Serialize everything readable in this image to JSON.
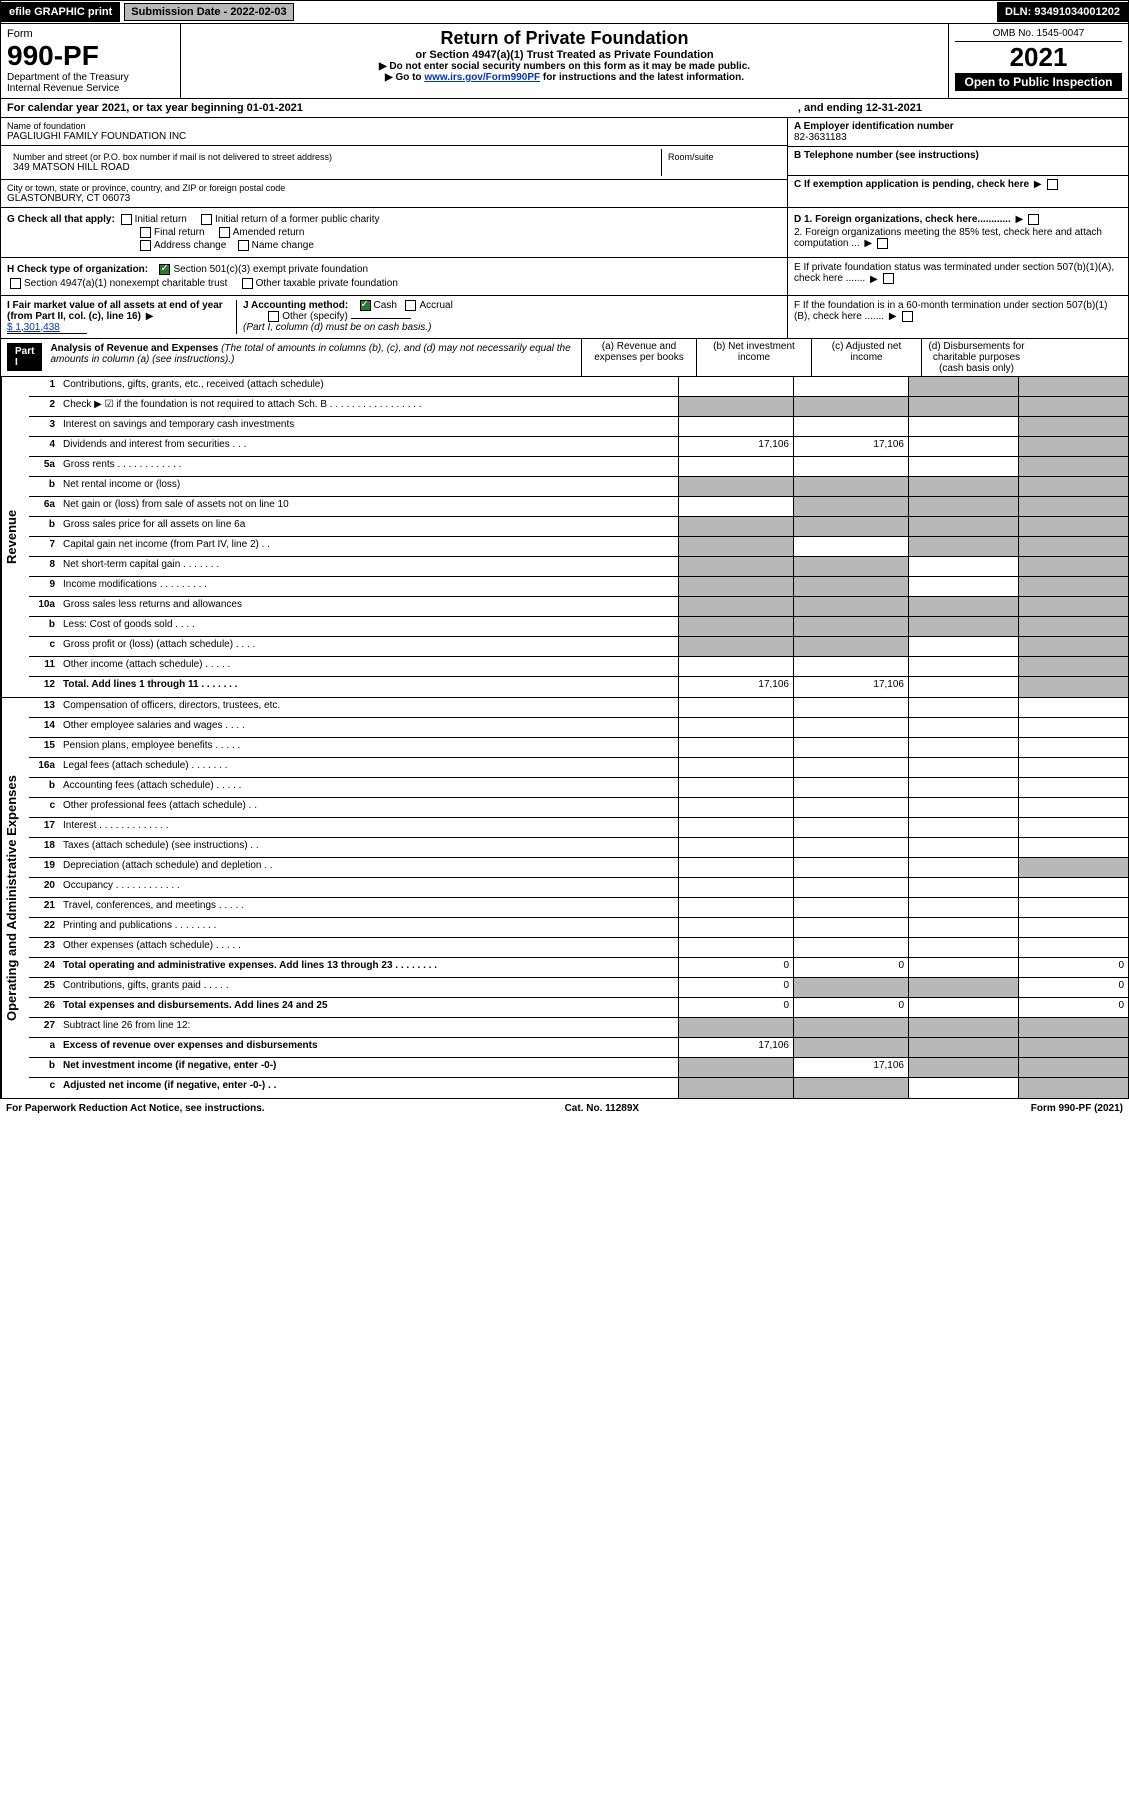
{
  "topbar": {
    "efile": "efile GRAPHIC print",
    "submission_label": "Submission Date - 2022-02-03",
    "dln": "DLN: 93491034001202"
  },
  "header": {
    "form_label": "Form",
    "form_number": "990-PF",
    "dept": "Department of the Treasury",
    "irs": "Internal Revenue Service",
    "title": "Return of Private Foundation",
    "subtitle": "or Section 4947(a)(1) Trust Treated as Private Foundation",
    "inst1": "▶ Do not enter social security numbers on this form as it may be made public.",
    "inst2_pre": "▶ Go to ",
    "inst2_link": "www.irs.gov/Form990PF",
    "inst2_post": " for instructions and the latest information.",
    "omb": "OMB No. 1545-0047",
    "year": "2021",
    "inspect": "Open to Public Inspection"
  },
  "cal": {
    "text": "For calendar year 2021, or tax year beginning 01-01-2021",
    "end": ", and ending 12-31-2021"
  },
  "info": {
    "name_label": "Name of foundation",
    "name": "PAGLIUGHI FAMILY FOUNDATION INC",
    "addr_label": "Number and street (or P.O. box number if mail is not delivered to street address)",
    "addr": "349 MATSON HILL ROAD",
    "room_label": "Room/suite",
    "city_label": "City or town, state or province, country, and ZIP or foreign postal code",
    "city": "GLASTONBURY, CT  06073",
    "ein_label": "A Employer identification number",
    "ein": "82-3631183",
    "tel_label": "B Telephone number (see instructions)",
    "c_label": "C If exemption application is pending, check here"
  },
  "g": {
    "label": "G Check all that apply:",
    "opts": [
      "Initial return",
      "Initial return of a former public charity",
      "Final return",
      "Amended return",
      "Address change",
      "Name change"
    ]
  },
  "h": {
    "label": "H Check type of organization:",
    "opt1": "Section 501(c)(3) exempt private foundation",
    "opt2": "Section 4947(a)(1) nonexempt charitable trust",
    "opt3": "Other taxable private foundation"
  },
  "i": {
    "label": "I Fair market value of all assets at end of year (from Part II, col. (c), line 16)",
    "val": "$  1,301,438"
  },
  "j": {
    "label": "J Accounting method:",
    "cash": "Cash",
    "accrual": "Accrual",
    "other": "Other (specify)",
    "note": "(Part I, column (d) must be on cash basis.)"
  },
  "d": {
    "d1": "D 1. Foreign organizations, check here............",
    "d2": "2. Foreign organizations meeting the 85% test, check here and attach computation ..."
  },
  "e": {
    "text": "E  If private foundation status was terminated under section 507(b)(1)(A), check here ......."
  },
  "f": {
    "text": "F  If the foundation is in a 60-month termination under section 507(b)(1)(B), check here ......."
  },
  "part1": {
    "label": "Part I",
    "title": "Analysis of Revenue and Expenses",
    "note": "(The total of amounts in columns (b), (c), and (d) may not necessarily equal the amounts in column (a) (see instructions).)",
    "col_a": "(a)  Revenue and expenses per books",
    "col_b": "(b)  Net investment income",
    "col_c": "(c)  Adjusted net income",
    "col_d": "(d)  Disbursements for charitable purposes (cash basis only)"
  },
  "revenue_rows": [
    {
      "n": "1",
      "d": "Contributions, gifts, grants, etc., received (attach schedule)",
      "a": "",
      "b": "",
      "c": "g",
      "dcol": "g"
    },
    {
      "n": "2",
      "d": "Check ▶ ☑ if the foundation is not required to attach Sch. B  . . . . . . . . . . . . . . . . .",
      "a": "g",
      "b": "g",
      "c": "g",
      "dcol": "g"
    },
    {
      "n": "3",
      "d": "Interest on savings and temporary cash investments",
      "a": "",
      "b": "",
      "c": "",
      "dcol": "g"
    },
    {
      "n": "4",
      "d": "Dividends and interest from securities   .  .  .",
      "a": "17,106",
      "b": "17,106",
      "c": "",
      "dcol": "g"
    },
    {
      "n": "5a",
      "d": "Gross rents   .  .  .  .  .  .  .  .  .  .  .  .",
      "a": "",
      "b": "",
      "c": "",
      "dcol": "g"
    },
    {
      "n": "b",
      "d": "Net rental income or (loss)  ",
      "a": "g",
      "b": "g",
      "c": "g",
      "dcol": "g"
    },
    {
      "n": "6a",
      "d": "Net gain or (loss) from sale of assets not on line 10",
      "a": "",
      "b": "g",
      "c": "g",
      "dcol": "g"
    },
    {
      "n": "b",
      "d": "Gross sales price for all assets on line 6a ",
      "a": "g",
      "b": "g",
      "c": "g",
      "dcol": "g"
    },
    {
      "n": "7",
      "d": "Capital gain net income (from Part IV, line 2)   .  .",
      "a": "g",
      "b": "",
      "c": "g",
      "dcol": "g"
    },
    {
      "n": "8",
      "d": "Net short-term capital gain  .  .  .  .  .  .  .",
      "a": "g",
      "b": "g",
      "c": "",
      "dcol": "g"
    },
    {
      "n": "9",
      "d": "Income modifications  .  .  .  .  .  .  .  .  .",
      "a": "g",
      "b": "g",
      "c": "",
      "dcol": "g"
    },
    {
      "n": "10a",
      "d": "Gross sales less returns and allowances",
      "a": "g",
      "b": "g",
      "c": "g",
      "dcol": "g"
    },
    {
      "n": "b",
      "d": "Less: Cost of goods sold   .  .  .  .",
      "a": "g",
      "b": "g",
      "c": "g",
      "dcol": "g"
    },
    {
      "n": "c",
      "d": "Gross profit or (loss) (attach schedule)   .  .  .  .",
      "a": "g",
      "b": "g",
      "c": "",
      "dcol": "g"
    },
    {
      "n": "11",
      "d": "Other income (attach schedule)   .  .  .  .  .",
      "a": "",
      "b": "",
      "c": "",
      "dcol": "g"
    },
    {
      "n": "12",
      "d": "Total. Add lines 1 through 11   .  .  .  .  .  .  .",
      "bold": true,
      "a": "17,106",
      "b": "17,106",
      "c": "",
      "dcol": "g"
    }
  ],
  "expense_rows": [
    {
      "n": "13",
      "d": "Compensation of officers, directors, trustees, etc.",
      "a": "",
      "b": "",
      "c": "",
      "dcol": ""
    },
    {
      "n": "14",
      "d": "Other employee salaries and wages   .  .  .  .",
      "a": "",
      "b": "",
      "c": "",
      "dcol": ""
    },
    {
      "n": "15",
      "d": "Pension plans, employee benefits  .  .  .  .  .",
      "a": "",
      "b": "",
      "c": "",
      "dcol": ""
    },
    {
      "n": "16a",
      "d": "Legal fees (attach schedule)  .  .  .  .  .  .  .",
      "a": "",
      "b": "",
      "c": "",
      "dcol": ""
    },
    {
      "n": "b",
      "d": "Accounting fees (attach schedule)  .  .  .  .  .",
      "a": "",
      "b": "",
      "c": "",
      "dcol": ""
    },
    {
      "n": "c",
      "d": "Other professional fees (attach schedule)   .  .",
      "a": "",
      "b": "",
      "c": "",
      "dcol": ""
    },
    {
      "n": "17",
      "d": "Interest  .  .  .  .  .  .  .  .  .  .  .  .  .",
      "a": "",
      "b": "",
      "c": "",
      "dcol": ""
    },
    {
      "n": "18",
      "d": "Taxes (attach schedule) (see instructions)   .  .",
      "a": "",
      "b": "",
      "c": "",
      "dcol": ""
    },
    {
      "n": "19",
      "d": "Depreciation (attach schedule) and depletion   .  .",
      "a": "",
      "b": "",
      "c": "",
      "dcol": "g"
    },
    {
      "n": "20",
      "d": "Occupancy  .  .  .  .  .  .  .  .  .  .  .  .",
      "a": "",
      "b": "",
      "c": "",
      "dcol": ""
    },
    {
      "n": "21",
      "d": "Travel, conferences, and meetings  .  .  .  .  .",
      "a": "",
      "b": "",
      "c": "",
      "dcol": ""
    },
    {
      "n": "22",
      "d": "Printing and publications  .  .  .  .  .  .  .  .",
      "a": "",
      "b": "",
      "c": "",
      "dcol": ""
    },
    {
      "n": "23",
      "d": "Other expenses (attach schedule)  .  .  .  .  .",
      "a": "",
      "b": "",
      "c": "",
      "dcol": ""
    },
    {
      "n": "24",
      "d": "Total operating and administrative expenses. Add lines 13 through 23   .  .  .  .  .  .  .  .",
      "bold": true,
      "a": "0",
      "b": "0",
      "c": "",
      "dcol": "0"
    },
    {
      "n": "25",
      "d": "Contributions, gifts, grants paid   .  .  .  .  .",
      "a": "0",
      "b": "g",
      "c": "g",
      "dcol": "0"
    },
    {
      "n": "26",
      "d": "Total expenses and disbursements. Add lines 24 and 25",
      "bold": true,
      "a": "0",
      "b": "0",
      "c": "",
      "dcol": "0"
    },
    {
      "n": "27",
      "d": "Subtract line 26 from line 12:",
      "a": "g",
      "b": "g",
      "c": "g",
      "dcol": "g"
    },
    {
      "n": "a",
      "d": "Excess of revenue over expenses and disbursements",
      "bold": true,
      "a": "17,106",
      "b": "g",
      "c": "g",
      "dcol": "g"
    },
    {
      "n": "b",
      "d": "Net investment income (if negative, enter -0-)",
      "bold": true,
      "a": "g",
      "b": "17,106",
      "c": "g",
      "dcol": "g"
    },
    {
      "n": "c",
      "d": "Adjusted net income (if negative, enter -0-)   .  .",
      "bold": true,
      "a": "g",
      "b": "g",
      "c": "",
      "dcol": "g"
    }
  ],
  "side_labels": {
    "rev": "Revenue",
    "exp": "Operating and Administrative Expenses"
  },
  "footer": {
    "left": "For Paperwork Reduction Act Notice, see instructions.",
    "cat": "Cat. No. 11289X",
    "form": "Form 990-PF (2021)"
  }
}
